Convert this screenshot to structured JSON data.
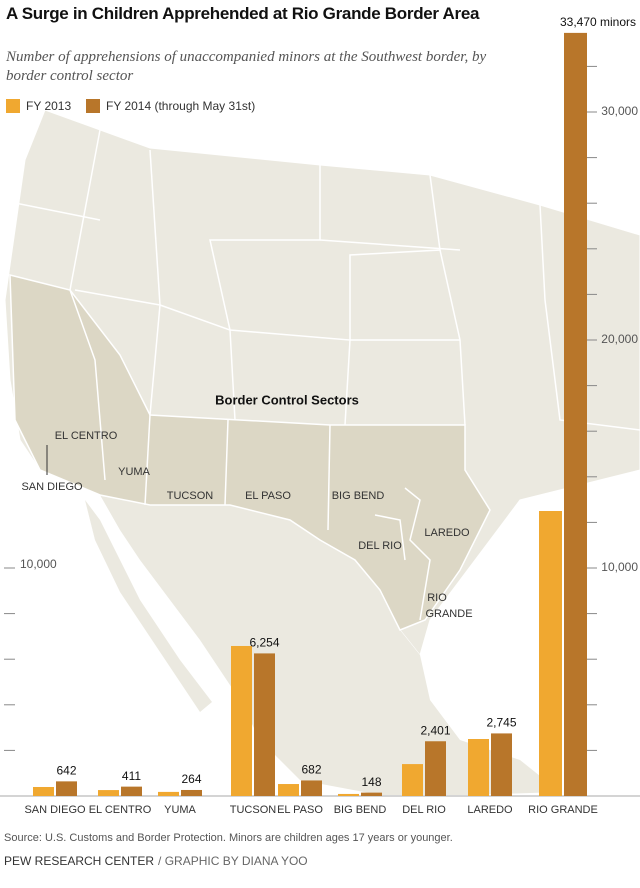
{
  "chart_data": {
    "type": "bar",
    "title": "A Surge in Children Apprehended at Rio Grande Border Area",
    "subtitle": "Number of apprehensions of unaccompanied minors at the Southwest border, by border control sector",
    "categories": [
      "SAN DIEGO",
      "EL CENTRO",
      "YUMA",
      "TUCSON",
      "EL PASO",
      "BIG BEND",
      "DEL RIO",
      "LAREDO",
      "RIO GRANDE"
    ],
    "series": [
      {
        "name": "FY 2013",
        "color": "#f0a830",
        "values": [
          395,
          260,
          180,
          6580,
          525,
          90,
          1400,
          2500,
          12500
        ]
      },
      {
        "name": "FY 2014 (through May 31st)",
        "color": "#b8762a",
        "values": [
          642,
          411,
          264,
          6254,
          682,
          148,
          2401,
          2745,
          33470
        ],
        "value_labels": [
          "642",
          "411",
          "264",
          "6,254",
          "682",
          "148",
          "2,401",
          "2,745",
          "33,470 minors"
        ]
      }
    ],
    "ylim": [
      0,
      34000
    ],
    "yticks": [
      {
        "value": 10000,
        "label": "10,000"
      },
      {
        "value": 20000,
        "label": "20,000"
      },
      {
        "value": 30000,
        "label": "30,000"
      }
    ],
    "minor_yticks": [
      2000,
      4000,
      6000,
      8000,
      12000,
      14000,
      16000,
      18000,
      22000,
      24000,
      26000,
      28000,
      32000
    ],
    "source": "Source: U.S. Customs and Border Protection. Minors are children ages 17 years or younger.",
    "credit": {
      "org": "PEW RESEARCH CENTER",
      "byline": "/ GRAPHIC BY DIANA YOO"
    }
  },
  "map": {
    "title": "Border Control Sectors",
    "labels": [
      "EL CENTRO",
      "YUMA",
      "SAN DIEGO",
      "TUCSON",
      "EL PASO",
      "BIG BEND",
      "DEL RIO",
      "LAREDO",
      "RIO",
      "GRANDE"
    ]
  }
}
